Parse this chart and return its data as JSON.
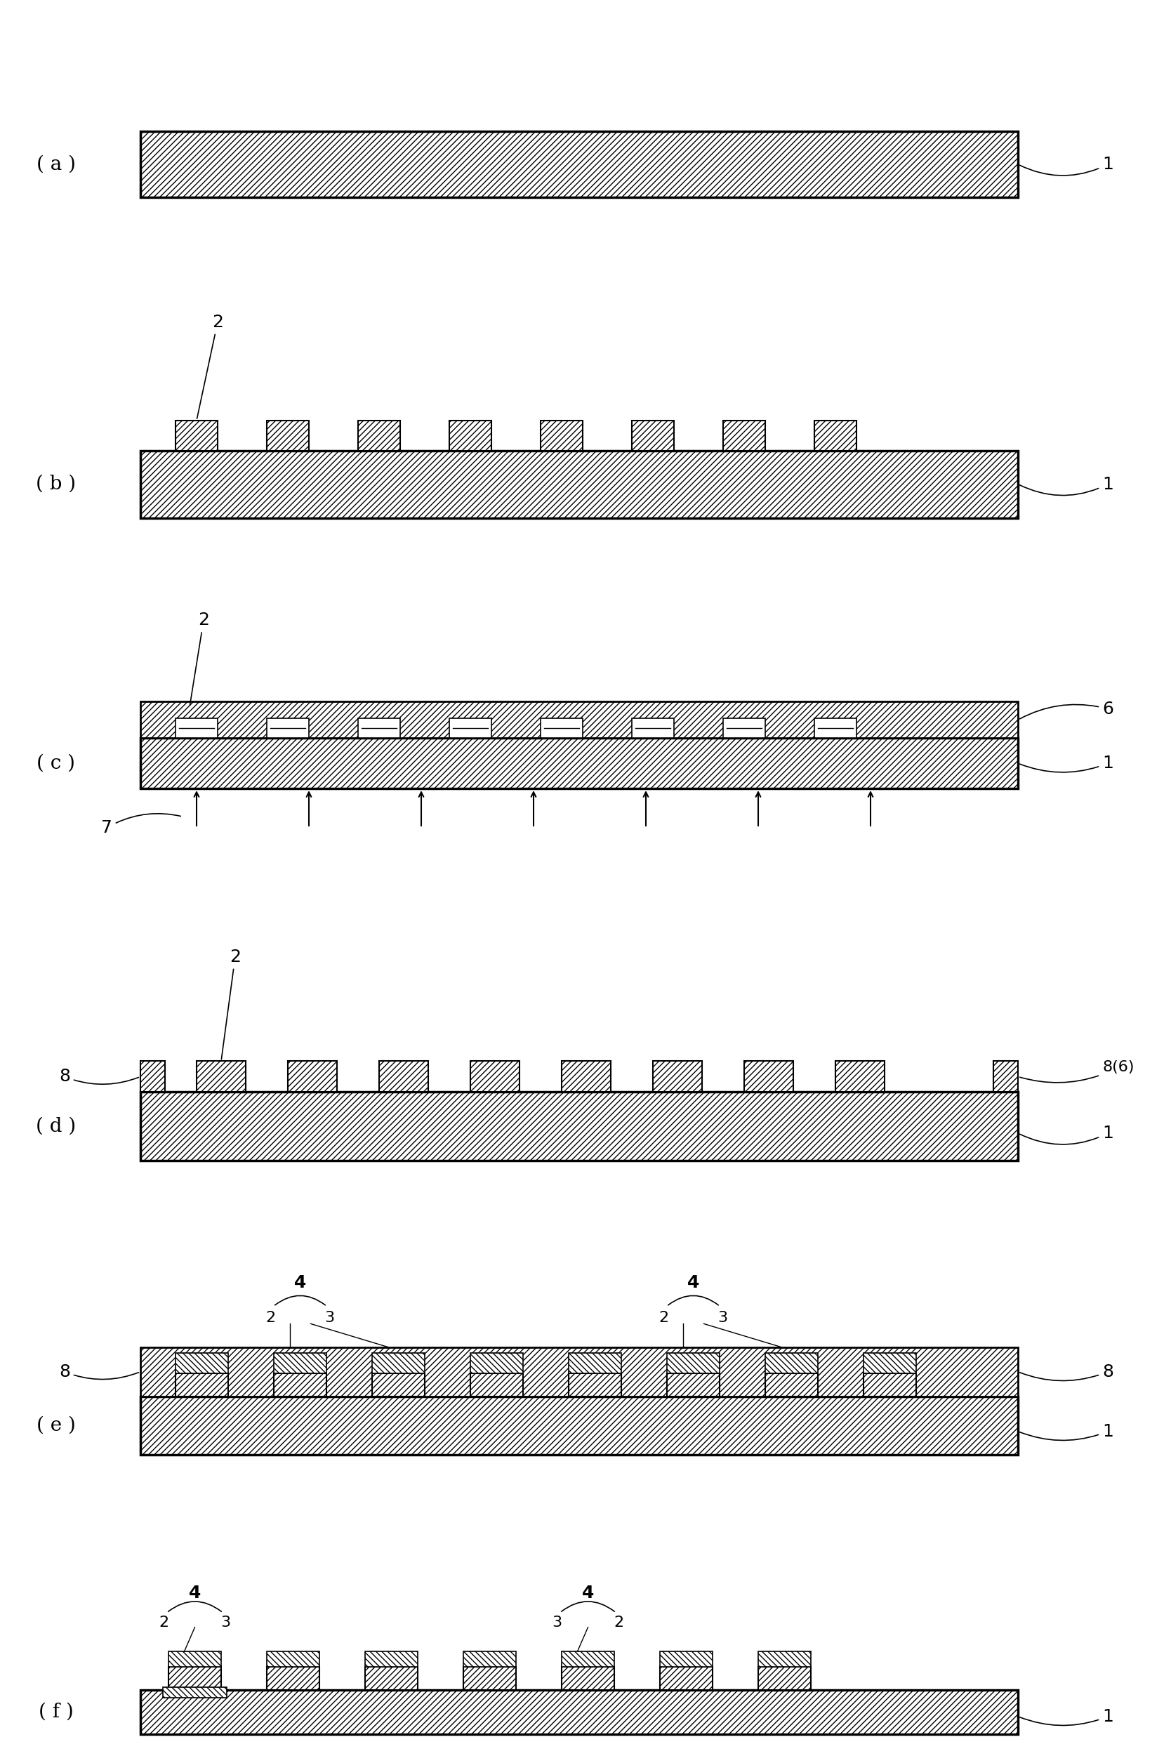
{
  "figure_width": 16.68,
  "figure_height": 25.11,
  "bg": "#ffffff",
  "lc": "#000000",
  "lbl_fs": 20,
  "ann_fs": 18,
  "sub_hatch": "////",
  "pad_hatch": "////",
  "resin_hatch": "////",
  "panels": [
    "( a )",
    "( b )",
    "( c )",
    "( d )",
    "( e )",
    "( f )"
  ]
}
